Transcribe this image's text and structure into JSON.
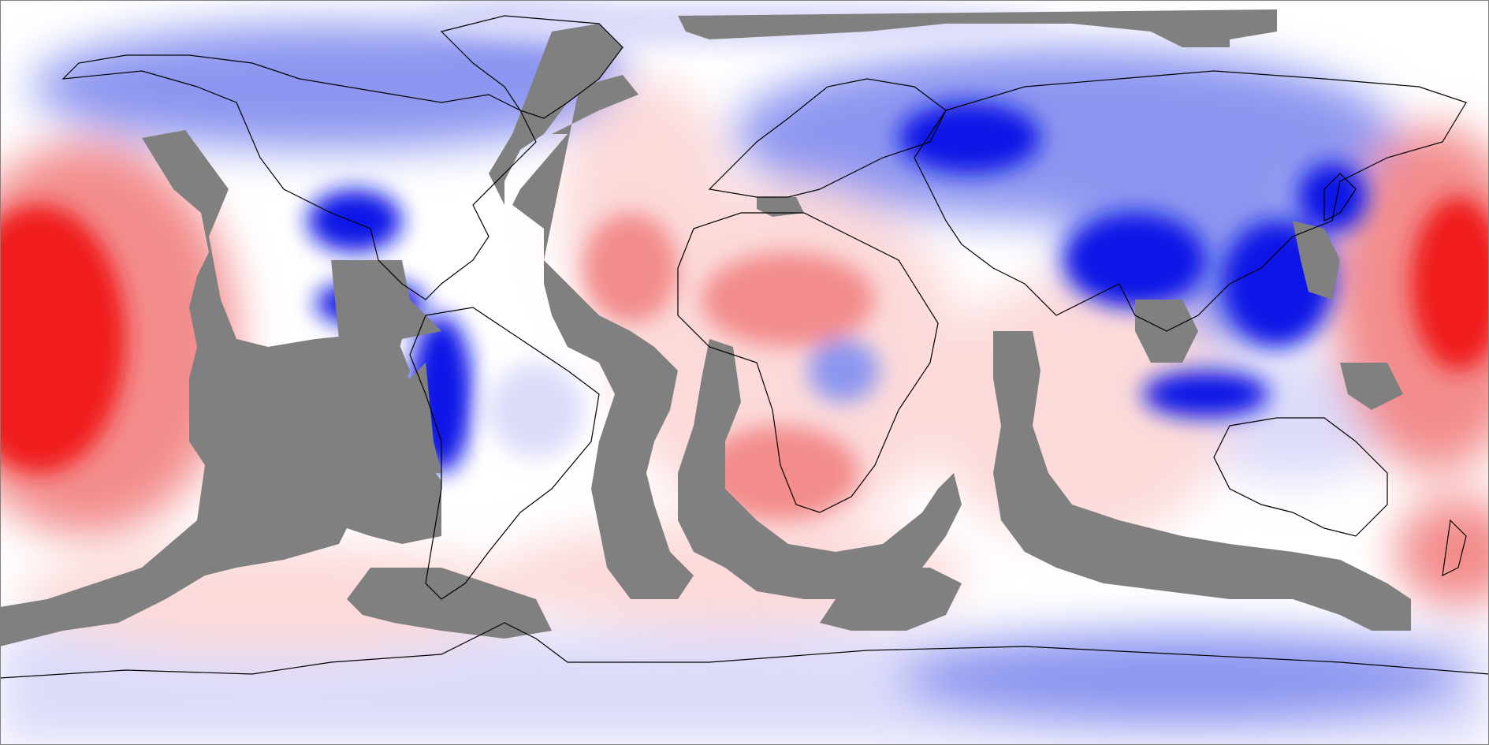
{
  "map": {
    "projection": "equirectangular",
    "extent": {
      "lon": [
        -180,
        180
      ],
      "lat": [
        -90,
        90
      ]
    },
    "colors": {
      "strong_negative": "#0a14e6",
      "negative": "#8c96f0",
      "weak_negative": "#dcdcfa",
      "neutral": "#ffffff",
      "weak_positive": "#fcdada",
      "positive": "#f38c8c",
      "strong_positive": "#f01e1e",
      "no_data": "#808080",
      "coastline": "#000000"
    },
    "legend": "none",
    "title": ""
  }
}
